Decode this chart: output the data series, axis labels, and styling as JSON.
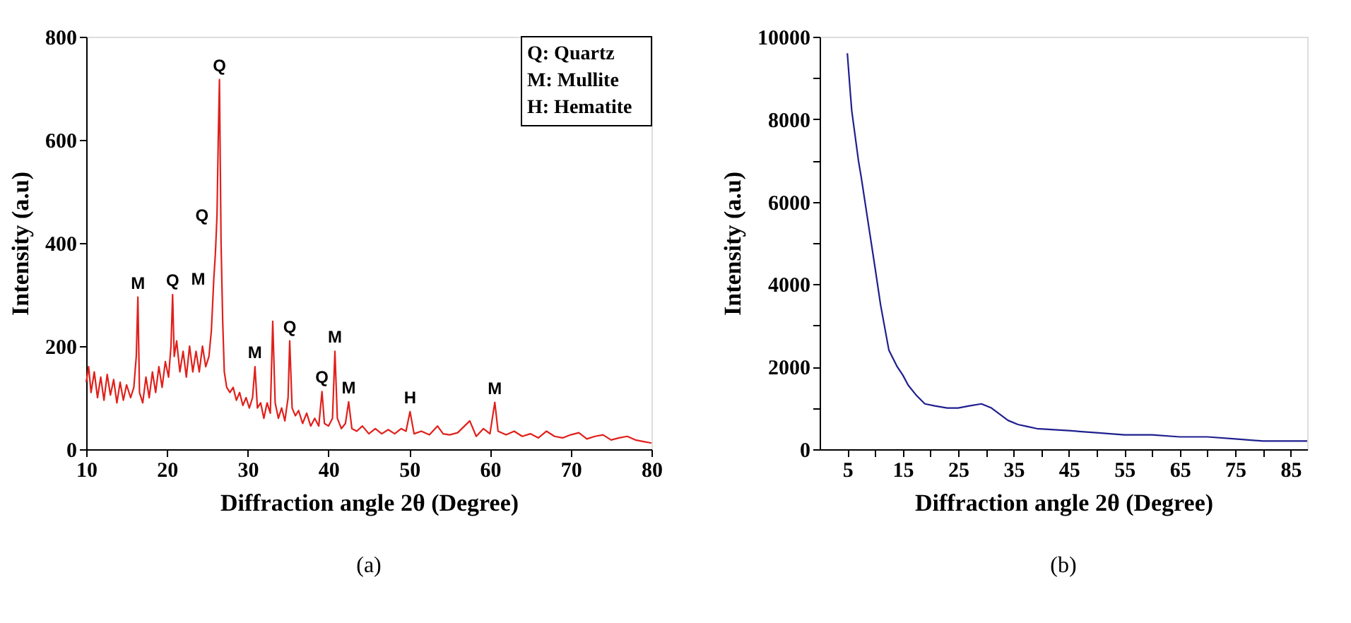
{
  "chart_data": [
    {
      "type": "line",
      "title": "(a)",
      "xlabel": "Diffraction angle 2θ (Degree)",
      "ylabel": "Intensity (a.u)",
      "xlim": [
        10,
        80
      ],
      "xticks": [
        10,
        20,
        30,
        40,
        50,
        60,
        70,
        80
      ],
      "ylim": [
        0,
        800
      ],
      "yticks": [
        0,
        200,
        400,
        600,
        800
      ],
      "series": [
        {
          "color": "#e0201b",
          "x": [
            10,
            10.3,
            10.6,
            11,
            11.4,
            11.8,
            12.2,
            12.6,
            13,
            13.4,
            13.8,
            14.2,
            14.6,
            15,
            15.5,
            15.9,
            16.2,
            16.4,
            16.6,
            17,
            17.4,
            17.8,
            18.2,
            18.6,
            19,
            19.4,
            19.8,
            20.2,
            20.5,
            20.7,
            20.9,
            21.2,
            21.6,
            22,
            22.4,
            22.8,
            23.2,
            23.6,
            24,
            24.4,
            24.8,
            25.2,
            25.5,
            25.8,
            26.0,
            26.2,
            26.35,
            26.5,
            26.7,
            26.9,
            27.1,
            27.4,
            27.8,
            28.2,
            28.6,
            29,
            29.4,
            29.8,
            30.2,
            30.6,
            30.9,
            31.2,
            31.6,
            32,
            32.4,
            32.8,
            33.1,
            33.4,
            33.8,
            34.2,
            34.6,
            35.0,
            35.2,
            35.5,
            35.9,
            36.3,
            36.8,
            37.3,
            37.8,
            38.3,
            38.8,
            39.2,
            39.5,
            40,
            40.5,
            40.8,
            41.1,
            41.6,
            42.1,
            42.5,
            42.9,
            43.5,
            44.2,
            45,
            45.8,
            46.6,
            47.4,
            48.2,
            49,
            49.6,
            50.1,
            50.6,
            51.5,
            52.5,
            53.5,
            54.2,
            55,
            56,
            57.5,
            58.3,
            59.2,
            60,
            60.6,
            61,
            62,
            63,
            64,
            65,
            66,
            67,
            68,
            69,
            70,
            71,
            72,
            73,
            74,
            75,
            76,
            77,
            78,
            79,
            80
          ],
          "values": [
            130,
            160,
            110,
            150,
            100,
            140,
            95,
            145,
            105,
            135,
            90,
            130,
            95,
            125,
            100,
            120,
            180,
            295,
            110,
            90,
            140,
            100,
            150,
            110,
            160,
            120,
            170,
            140,
            200,
            300,
            180,
            210,
            150,
            190,
            140,
            200,
            150,
            190,
            150,
            200,
            160,
            180,
            230,
            330,
            380,
            454,
            600,
            717,
            400,
            250,
            150,
            120,
            110,
            120,
            95,
            110,
            85,
            100,
            80,
            100,
            160,
            80,
            90,
            60,
            90,
            70,
            248,
            90,
            60,
            80,
            55,
            100,
            210,
            80,
            65,
            75,
            50,
            70,
            45,
            60,
            45,
            112,
            50,
            45,
            60,
            190,
            60,
            40,
            50,
            92,
            40,
            35,
            45,
            30,
            40,
            30,
            38,
            30,
            40,
            35,
            73,
            30,
            35,
            28,
            45,
            30,
            28,
            32,
            55,
            25,
            40,
            30,
            91,
            35,
            28,
            35,
            25,
            30,
            22,
            35,
            25,
            22,
            28,
            32,
            20,
            25,
            28,
            18,
            22,
            25,
            18,
            15,
            12
          ]
        }
      ],
      "annotations": [
        {
          "text": "M",
          "x": 16.4,
          "y": 295
        },
        {
          "text": "Q",
          "x": 20.7,
          "y": 300
        },
        {
          "text": "M",
          "x": 25.8,
          "y": 330
        },
        {
          "text": "Q",
          "x": 26.2,
          "y": 454
        },
        {
          "text": "Q",
          "x": 26.5,
          "y": 717
        },
        {
          "text": "M",
          "x": 30.9,
          "y": 160
        },
        {
          "text": "Q",
          "x": 35.2,
          "y": 210
        },
        {
          "text": "Q",
          "x": 39.2,
          "y": 112
        },
        {
          "text": "M",
          "x": 40.8,
          "y": 190
        },
        {
          "text": "M",
          "x": 42.5,
          "y": 92
        },
        {
          "text": "H",
          "x": 50.1,
          "y": 73
        },
        {
          "text": "M",
          "x": 60.6,
          "y": 91
        },
        "Q: Quartz",
        "M: Mullite",
        "H: Hematite"
      ]
    },
    {
      "type": "line",
      "title": "(b)",
      "xlabel": "Diffraction angle 2θ (Degree)",
      "ylabel": "Intensity (a.u)",
      "xlim": [
        0,
        88
      ],
      "xticks": [
        5,
        {
          "value": 10,
          "label": null
        },
        15,
        {
          "value": 20,
          "label": null
        },
        25,
        {
          "value": 30,
          "label": null
        },
        35,
        {
          "value": 40,
          "label": null
        },
        45,
        {
          "value": 50,
          "label": null
        },
        55,
        {
          "value": 60,
          "label": null
        },
        65,
        {
          "value": 70,
          "label": null
        },
        75,
        {
          "value": 80,
          "label": null
        },
        85
      ],
      "ylim": [
        0,
        10000
      ],
      "yticks": [
        0,
        {
          "value": 1000,
          "label": null
        },
        2000,
        {
          "value": 3000,
          "label": null
        },
        4000,
        {
          "value": 5000,
          "label": null
        },
        6000,
        {
          "value": 7000,
          "label": null
        },
        8000,
        {
          "value": 9000,
          "label": null
        },
        10000
      ],
      "series": [
        {
          "color": "#1f1f8f",
          "x": [
            5,
            5.5,
            5.8,
            7,
            7.5,
            8.75,
            10,
            11,
            12.5,
            14,
            15,
            16,
            17.5,
            19,
            20.8,
            23,
            25,
            27,
            29.2,
            31,
            32.5,
            34,
            35.8,
            37.5,
            39.2,
            45,
            50,
            55,
            60,
            65,
            70,
            75,
            80,
            85,
            88
          ],
          "values": [
            9600,
            8700,
            8200,
            7000,
            6600,
            5500,
            4400,
            3500,
            2400,
            2000,
            1800,
            1550,
            1300,
            1100,
            1050,
            1000,
            1000,
            1050,
            1100,
            1000,
            850,
            700,
            600,
            550,
            500,
            450,
            400,
            350,
            350,
            300,
            300,
            250,
            200,
            200,
            200
          ]
        }
      ]
    }
  ]
}
